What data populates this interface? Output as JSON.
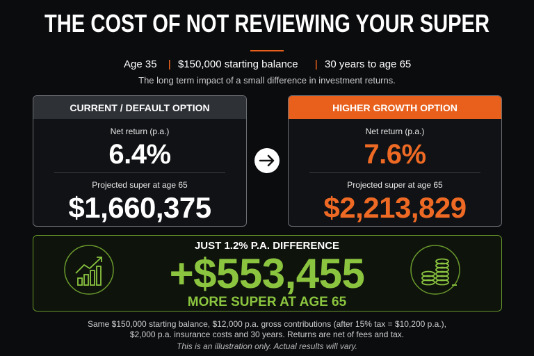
{
  "title": "THE COST OF NOT REVIEWING YOUR SUPER",
  "subtitle": {
    "items": [
      "Age 35",
      "$150,000 starting balance",
      "30 years to age 65"
    ]
  },
  "tagline": "The long term impact of a small difference in investment returns.",
  "options": [
    {
      "header": "CURRENT / DEFAULT OPTION",
      "return_label": "Net return (p.a.)",
      "return": "6.4%",
      "projected_label": "Projected super at age 65",
      "projected": "$1,660,375"
    },
    {
      "header": "HIGHER GROWTH OPTION",
      "return_label": "Net return (p.a.)",
      "return": "7.6%",
      "projected_label": "Projected super at age 65",
      "projected": "$2,213,829"
    }
  ],
  "difference": {
    "headline": "JUST 1.2% P.A. DIFFERENCE",
    "amount": "+$553,455",
    "caption": "MORE SUPER AT AGE 65"
  },
  "footer": {
    "lines": [
      "Same $150,000 starting balance, $12,000 p.a. gross contributions (after 15% tax = $10,200 p.a.),",
      "$2,000 p.a. insurance costs and 30 years. Returns are net of fees and tax."
    ],
    "disclaimer": "This is an illustration only. Actual results will vary."
  }
}
